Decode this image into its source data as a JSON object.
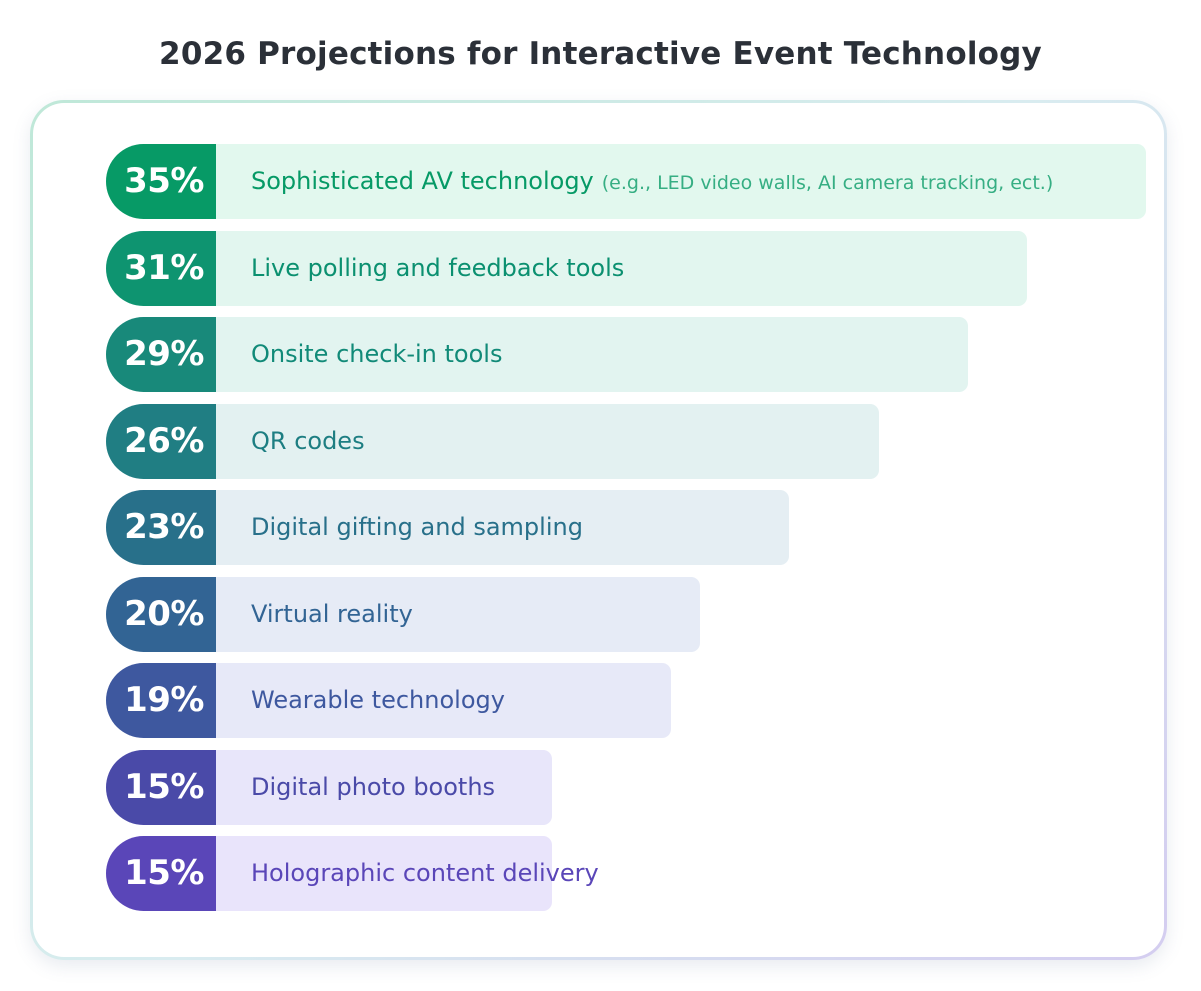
{
  "chart_data": {
    "type": "bar",
    "orientation": "horizontal",
    "title": "2026 Projections for Interactive Event Technology",
    "unit": "%",
    "xlim": [
      0,
      35
    ],
    "grid": false,
    "categories": [
      "Sophisticated AV technology",
      "Live polling and feedback tools",
      "Onsite check-in tools",
      "QR codes",
      "Digital gifting and sampling",
      "Virtual reality",
      "Wearable technology",
      "Digital photo booths",
      "Holographic content delivery"
    ],
    "values": [
      35,
      31,
      29,
      26,
      23,
      20,
      19,
      15,
      15
    ],
    "value_labels": [
      "35%",
      "31%",
      "29%",
      "26%",
      "23%",
      "20%",
      "19%",
      "15%",
      "15%"
    ],
    "annotations": [
      "(e.g., LED video walls, AI camera tracking, ect.)",
      "",
      "",
      "",
      "",
      "",
      "",
      "",
      ""
    ],
    "badge_colors": [
      "#079a66",
      "#0e9470",
      "#18897a",
      "#207e83",
      "#28708a",
      "#326494",
      "#3e589f",
      "#4a4aa8",
      "#5a46b8"
    ],
    "bar_colors": [
      "#e2f8ee",
      "#e2f6ef",
      "#e2f4f0",
      "#e3f1f1",
      "#e5eef3",
      "#e6ebf6",
      "#e7e9f8",
      "#e8e6fa",
      "#e9e4fb"
    ],
    "label_colors": [
      "#069a66",
      "#0b9070",
      "#118a78",
      "#1d7e82",
      "#28708a",
      "#326494",
      "#3e589f",
      "#4a4aa8",
      "#5a46b8"
    ]
  }
}
